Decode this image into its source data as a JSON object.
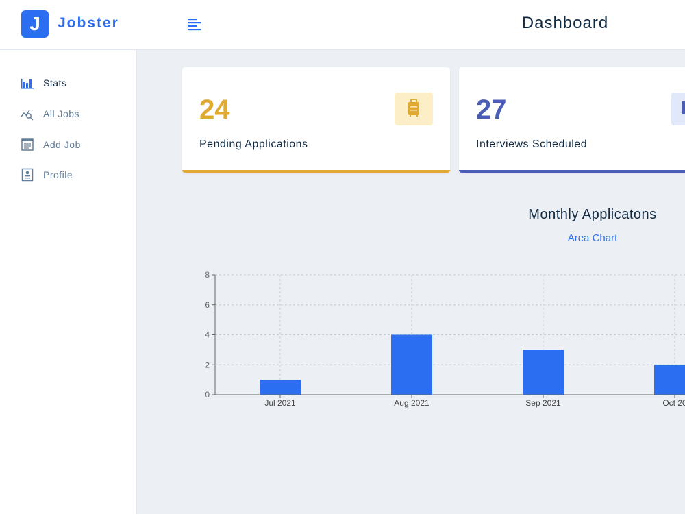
{
  "header": {
    "logo_letter": "J",
    "app_name": "Jobster",
    "title": "Dashboard",
    "menu_icon": "menu-align-left-icon"
  },
  "sidebar": {
    "items": [
      {
        "label": "Stats",
        "icon": "bar-chart-icon",
        "active": true
      },
      {
        "label": "All Jobs",
        "icon": "query-stats-icon",
        "active": false
      },
      {
        "label": "Add Job",
        "icon": "form-icon",
        "active": false
      },
      {
        "label": "Profile",
        "icon": "profile-icon",
        "active": false
      }
    ]
  },
  "stats": [
    {
      "count": "24",
      "label": "Pending Applications",
      "color": "#e0a931",
      "bg": "#fcefc7",
      "icon": "suitcase-icon"
    },
    {
      "count": "27",
      "label": "Interviews Scheduled",
      "color": "#4b5eb5",
      "bg": "#e0e8f9",
      "icon": "calendar-icon"
    }
  ],
  "chart": {
    "title": "Monthly Applicatons",
    "toggle_label": "Area Chart"
  },
  "colors": {
    "brand": "#2c6ef2",
    "bar": "#2c6ef2",
    "main_bg": "#ecf0f4"
  },
  "chart_data": {
    "type": "bar",
    "categories": [
      "Jul 2021",
      "Aug 2021",
      "Sep 2021",
      "Oct 20"
    ],
    "values": [
      1,
      4,
      3,
      2
    ],
    "title": "Monthly Applicatons",
    "xlabel": "",
    "ylabel": "",
    "ylim": [
      0,
      8
    ],
    "yticks": [
      0,
      2,
      4,
      6,
      8
    ],
    "grid": true
  }
}
